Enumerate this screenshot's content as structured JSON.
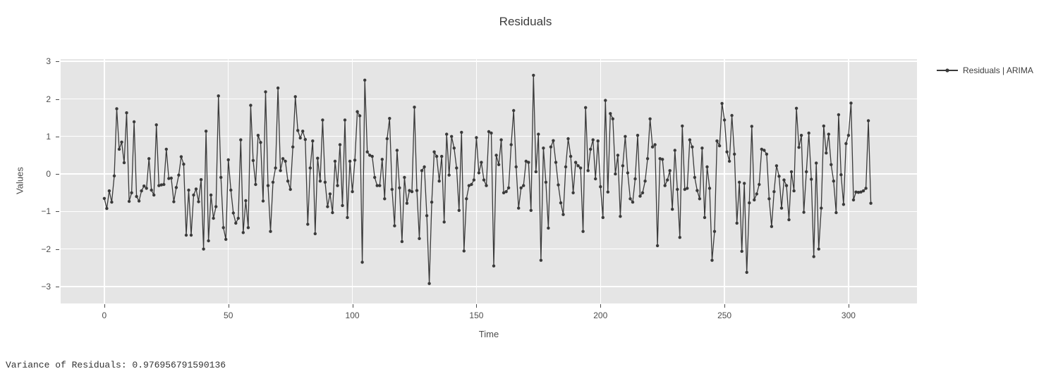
{
  "title": "Residuals",
  "legend": {
    "label": "Residuals | ARIMA"
  },
  "footer": {
    "variance_text": "Variance of Residuals: 0.976956791590136"
  },
  "colors": {
    "line": "#3a3a3a",
    "panel_background": "#e5e5e5",
    "gridline": "#ffffff",
    "tick_text": "#4c4c4c",
    "title_text": "#3d3d3d"
  },
  "chart_data": {
    "type": "line",
    "title": "Residuals",
    "xlabel": "Time",
    "ylabel": "Values",
    "grid": true,
    "legend_position": "right",
    "xlim": [
      -17.6,
      327.6
    ],
    "ylim": [
      -3.45,
      3.06
    ],
    "x_ticks": [
      0,
      50,
      100,
      150,
      200,
      250,
      300
    ],
    "x_tick_labels": [
      "0",
      "50",
      "100",
      "150",
      "200",
      "250",
      "300"
    ],
    "y_ticks": [
      3,
      2,
      1,
      0,
      -1,
      -2,
      -3
    ],
    "y_tick_labels": [
      "3",
      "2",
      "1",
      "0",
      "−1",
      "−2",
      "−3"
    ],
    "series": [
      {
        "name": "Residuals | ARIMA",
        "color": "#3a3a3a",
        "x_start": 0,
        "x_step": 1,
        "values": [
          -0.65,
          -0.92,
          -0.45,
          -0.75,
          -0.05,
          1.74,
          0.66,
          0.85,
          0.3,
          1.63,
          -0.73,
          -0.5,
          1.39,
          -0.6,
          -0.72,
          -0.45,
          -0.32,
          -0.38,
          0.41,
          -0.43,
          -0.56,
          1.31,
          -0.31,
          -0.29,
          -0.28,
          0.66,
          -0.12,
          -0.11,
          -0.74,
          -0.36,
          -0.03,
          0.46,
          0.26,
          -1.63,
          -0.43,
          -1.63,
          -0.56,
          -0.4,
          -0.74,
          -0.15,
          -2.0,
          1.14,
          -1.78,
          -0.56,
          -1.18,
          -0.87,
          2.08,
          -0.09,
          -1.43,
          -1.74,
          0.38,
          -0.43,
          -1.04,
          -1.31,
          -1.18,
          0.91,
          -1.56,
          -0.71,
          -1.43,
          1.83,
          0.36,
          -0.28,
          1.03,
          0.84,
          -0.72,
          2.19,
          -0.31,
          -1.53,
          -0.22,
          0.16,
          2.29,
          0.09,
          0.41,
          0.34,
          -0.19,
          -0.41,
          0.72,
          2.06,
          1.16,
          0.96,
          1.14,
          0.92,
          -1.34,
          0.16,
          0.88,
          -1.59,
          0.42,
          -0.19,
          1.44,
          -0.22,
          -0.87,
          -0.53,
          -1.03,
          0.34,
          -0.31,
          0.78,
          -0.84,
          1.44,
          -1.16,
          0.34,
          -0.47,
          0.37,
          1.66,
          1.55,
          -2.35,
          2.5,
          0.59,
          0.5,
          0.47,
          -0.09,
          -0.31,
          -0.31,
          0.39,
          -0.66,
          0.94,
          1.48,
          -0.41,
          -1.38,
          0.63,
          -0.37,
          -1.8,
          -0.09,
          -0.78,
          -0.44,
          -0.47,
          1.78,
          -0.44,
          -1.72,
          0.09,
          0.19,
          -1.11,
          -2.92,
          -0.75,
          0.59,
          0.47,
          -0.19,
          0.47,
          -1.28,
          1.06,
          -0.03,
          1.0,
          0.69,
          0.16,
          -0.97,
          1.11,
          -2.05,
          -0.66,
          -0.31,
          -0.28,
          -0.16,
          0.97,
          0.03,
          0.31,
          -0.16,
          -0.31,
          1.13,
          1.09,
          -2.45,
          0.5,
          0.25,
          0.91,
          -0.5,
          -0.47,
          -0.37,
          0.78,
          1.69,
          0.19,
          -0.91,
          -0.37,
          -0.31,
          0.34,
          0.31,
          -0.97,
          2.63,
          0.06,
          1.06,
          -2.3,
          0.69,
          -0.22,
          -1.44,
          0.72,
          0.89,
          0.31,
          -0.29,
          -0.77,
          -1.08,
          0.19,
          0.94,
          0.47,
          -0.5,
          0.31,
          0.22,
          0.16,
          -1.53,
          1.77,
          0.09,
          0.66,
          0.91,
          -0.13,
          0.88,
          -0.34,
          -1.16,
          1.96,
          -0.48,
          1.61,
          1.47,
          0.0,
          0.5,
          -1.13,
          0.22,
          1.0,
          0.03,
          -0.66,
          -0.75,
          -0.13,
          1.03,
          -0.59,
          -0.5,
          -0.19,
          0.41,
          1.47,
          0.72,
          0.78,
          -1.91,
          0.41,
          0.39,
          -0.31,
          -0.16,
          0.09,
          -0.94,
          0.63,
          -0.41,
          -1.69,
          1.28,
          -0.41,
          -0.38,
          0.91,
          0.72,
          -0.09,
          -0.44,
          -0.66,
          0.69,
          -1.16,
          0.19,
          -0.38,
          -2.3,
          -1.53,
          0.88,
          0.75,
          1.88,
          1.44,
          0.59,
          0.34,
          1.56,
          0.53,
          -1.31,
          -0.22,
          -2.06,
          -0.25,
          -2.62,
          -0.77,
          1.27,
          -0.69,
          -0.53,
          -0.28,
          0.66,
          0.63,
          0.53,
          -0.66,
          -1.4,
          -0.47,
          0.22,
          -0.06,
          -0.91,
          -0.16,
          -0.31,
          -1.22,
          0.06,
          -0.45,
          1.75,
          0.71,
          1.03,
          -1.02,
          0.06,
          1.09,
          -0.14,
          -2.2,
          0.29,
          -2.0,
          -0.91,
          1.28,
          0.56,
          1.06,
          0.25,
          -0.19,
          -1.03,
          1.58,
          -0.02,
          -0.81,
          0.81,
          1.03,
          1.89,
          -0.69,
          -0.48,
          -0.49,
          -0.48,
          -0.45,
          -0.38,
          1.42,
          -0.78
        ]
      }
    ]
  }
}
